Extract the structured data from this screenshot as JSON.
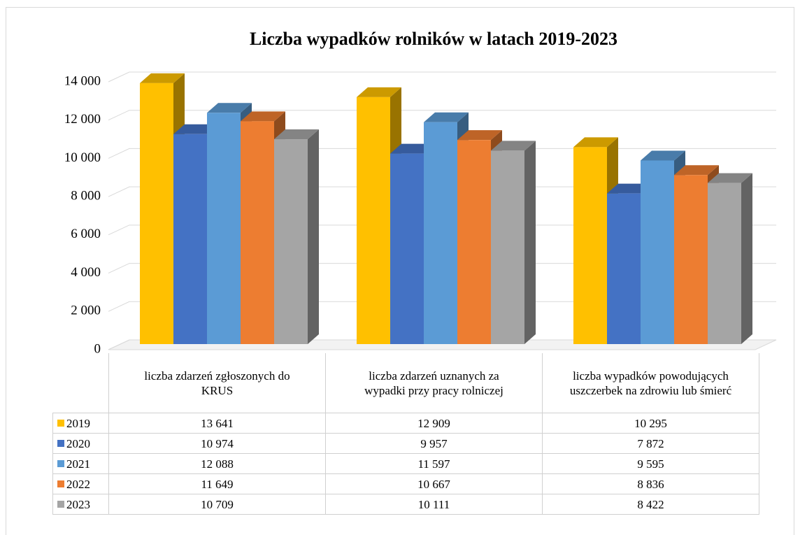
{
  "chart_data": {
    "type": "bar",
    "title": "Liczba wypadków rolników w latach 2019-2023",
    "categories": [
      "liczba zdarzeń zgłoszonych do KRUS",
      "liczba zdarzeń uznanych za wypadki przy pracy rolniczej",
      "liczba wypadków powodujących uszczerbek na zdrowiu lub śmierć"
    ],
    "series": [
      {
        "name": "2019",
        "color": "#ffc000",
        "values": [
          13641,
          12909,
          10295
        ],
        "value_labels": [
          "13 641",
          "12 909",
          "10 295"
        ]
      },
      {
        "name": "2020",
        "color": "#4472c4",
        "values": [
          10974,
          9957,
          7872
        ],
        "value_labels": [
          "10 974",
          "9 957",
          "7 872"
        ]
      },
      {
        "name": "2021",
        "color": "#5b9bd5",
        "values": [
          12088,
          11597,
          9595
        ],
        "value_labels": [
          "12 088",
          "11 597",
          "9 595"
        ]
      },
      {
        "name": "2022",
        "color": "#ed7d31",
        "values": [
          11649,
          10667,
          8836
        ],
        "value_labels": [
          "11 649",
          "10 667",
          "8 836"
        ]
      },
      {
        "name": "2023",
        "color": "#a5a5a5",
        "values": [
          10709,
          10111,
          8422
        ],
        "value_labels": [
          "10 709",
          "10 111",
          "8 422"
        ]
      }
    ],
    "ylim": [
      0,
      14000
    ],
    "yticks": [
      0,
      {
        "value": 2000,
        "label": "2 000"
      },
      {
        "value": 4000,
        "label": "4 000"
      },
      {
        "value": 6000,
        "label": "6 000"
      },
      {
        "value": 8000,
        "label": "8 000"
      },
      {
        "value": 10000,
        "label": "10 000"
      },
      {
        "value": 12000,
        "label": "12 000"
      },
      {
        "value": 14000,
        "label": "14 000"
      }
    ],
    "grid": true
  }
}
